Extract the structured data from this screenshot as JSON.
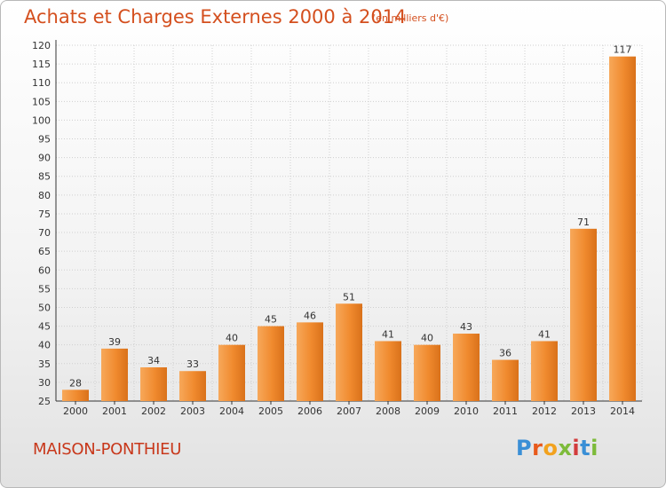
{
  "title": "Achats et Charges Externes 2000 à 2014",
  "subtitle": "(en milliers d'€)",
  "location": "MAISON-PONTHIEU",
  "logo": "Proxiti",
  "logo_colors": [
    "#3a8fd6",
    "#e85a1c",
    "#f2a21e",
    "#7dbb3a",
    "#d23c3c",
    "#3a8fd6",
    "#7dbb3a"
  ],
  "colors": {
    "bar": "#f08a2e",
    "bar_light": "#f7a85a",
    "bar_dark": "#d9711a",
    "title": "#d44f1e",
    "grid": "#cfcfcf"
  },
  "chart_data": {
    "type": "bar",
    "categories": [
      "2000",
      "2001",
      "2002",
      "2003",
      "2004",
      "2005",
      "2006",
      "2007",
      "2008",
      "2009",
      "2010",
      "2011",
      "2012",
      "2013",
      "2014"
    ],
    "values": [
      28,
      39,
      34,
      33,
      40,
      45,
      46,
      51,
      41,
      40,
      43,
      36,
      41,
      71,
      117
    ],
    "ylim": [
      25,
      120
    ],
    "yticks": [
      25,
      30,
      35,
      40,
      45,
      50,
      55,
      60,
      65,
      70,
      75,
      80,
      85,
      90,
      95,
      100,
      105,
      110,
      115,
      120
    ],
    "grid": true,
    "xlabel": "",
    "ylabel": ""
  }
}
